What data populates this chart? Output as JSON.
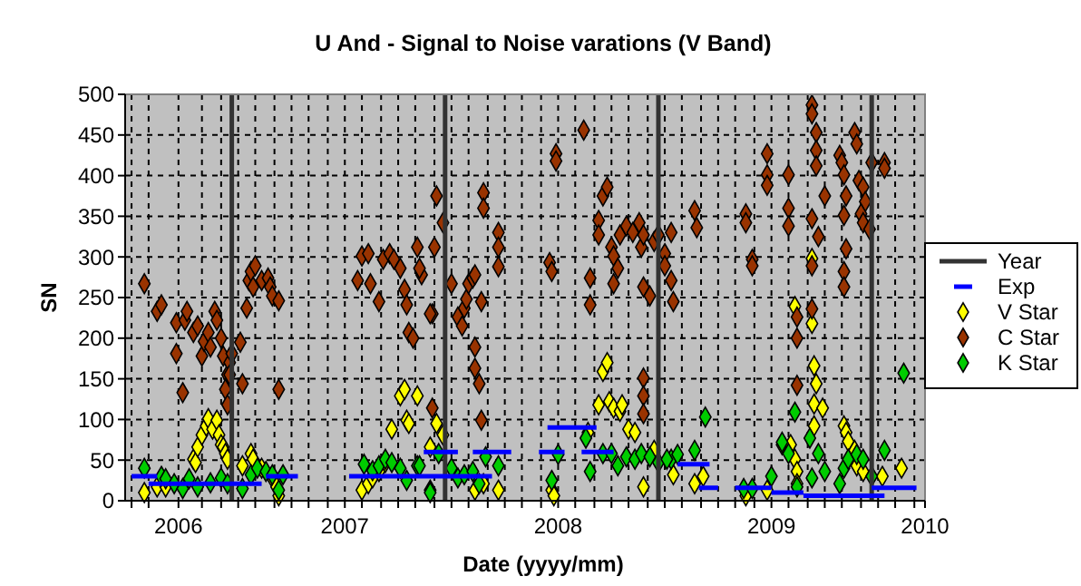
{
  "chart_data": {
    "type": "scatter",
    "title": "U And - Signal to Noise varations (V Band)",
    "xlabel": "Date (yyyy/mm)",
    "ylabel": "SN",
    "xlim": [
      2005.97,
      2009.72
    ],
    "ylim": [
      0,
      500
    ],
    "xticks": [
      {
        "value": 2006.0,
        "label": null
      },
      {
        "value": 2006.08,
        "label": null
      },
      {
        "value": 2006.22,
        "label": "2006"
      },
      {
        "value": 2006.33,
        "label": null
      },
      {
        "value": 2006.42,
        "label": null
      },
      {
        "value": 2006.5,
        "label": null
      },
      {
        "value": 2006.58,
        "label": null
      },
      {
        "value": 2006.67,
        "label": null
      },
      {
        "value": 2006.75,
        "label": null
      },
      {
        "value": 2006.83,
        "label": null
      },
      {
        "value": 2006.92,
        "label": null
      },
      {
        "value": 2007.0,
        "label": "2007"
      },
      {
        "value": 2007.08,
        "label": null
      },
      {
        "value": 2007.17,
        "label": null
      },
      {
        "value": 2007.25,
        "label": null
      },
      {
        "value": 2007.33,
        "label": null
      },
      {
        "value": 2007.42,
        "label": null
      },
      {
        "value": 2007.5,
        "label": null
      },
      {
        "value": 2007.58,
        "label": null
      },
      {
        "value": 2007.67,
        "label": null
      },
      {
        "value": 2007.75,
        "label": null
      },
      {
        "value": 2007.83,
        "label": null
      },
      {
        "value": 2007.92,
        "label": null
      },
      {
        "value": 2008.0,
        "label": "2008"
      },
      {
        "value": 2008.08,
        "label": null
      },
      {
        "value": 2008.17,
        "label": null
      },
      {
        "value": 2008.25,
        "label": null
      },
      {
        "value": 2008.33,
        "label": null
      },
      {
        "value": 2008.42,
        "label": null
      },
      {
        "value": 2008.5,
        "label": null
      },
      {
        "value": 2008.58,
        "label": null
      },
      {
        "value": 2008.67,
        "label": null
      },
      {
        "value": 2008.75,
        "label": null
      },
      {
        "value": 2008.83,
        "label": null
      },
      {
        "value": 2008.92,
        "label": null
      },
      {
        "value": 2009.0,
        "label": "2009"
      },
      {
        "value": 2009.08,
        "label": null
      },
      {
        "value": 2009.17,
        "label": null
      },
      {
        "value": 2009.25,
        "label": null
      },
      {
        "value": 2009.33,
        "label": null
      },
      {
        "value": 2009.42,
        "label": null
      },
      {
        "value": 2009.5,
        "label": null
      },
      {
        "value": 2009.58,
        "label": null
      },
      {
        "value": 2009.67,
        "label": null
      },
      {
        "value": 2009.72,
        "label": "2010"
      }
    ],
    "yticks": [
      0,
      50,
      100,
      150,
      200,
      250,
      300,
      350,
      400,
      450,
      500
    ],
    "grid": true,
    "legend": "right",
    "series": [
      {
        "name": "Year",
        "type": "line",
        "marker": "none",
        "color": "#333333",
        "x": [
          2006.47,
          2006.47,
          null,
          2007.47,
          2007.47,
          null,
          2008.47,
          2008.47,
          null,
          2009.47,
          2009.47
        ],
        "values": [
          0,
          500,
          null,
          0,
          500,
          null,
          0,
          500,
          null,
          0,
          500
        ]
      },
      {
        "name": "Exp",
        "type": "line",
        "marker": "none",
        "color": "#0000ff",
        "x": [
          2006.0,
          2006.12,
          null,
          2006.08,
          2006.61,
          null,
          2006.63,
          2006.78,
          null,
          2007.02,
          2007.69,
          null,
          2007.37,
          2007.53,
          null,
          2007.6,
          2007.78,
          null,
          2007.95,
          2008.18,
          null,
          2007.91,
          2008.03,
          null,
          2008.11,
          2008.26,
          null,
          2008.56,
          2008.71,
          null,
          2008.66,
          2008.75,
          null,
          2008.83,
          2009.0,
          null,
          2009.0,
          2009.15,
          null,
          2009.15,
          2009.53,
          null,
          2009.47,
          2009.68
        ],
        "values": [
          30,
          30,
          null,
          21,
          21,
          null,
          30,
          30,
          null,
          30,
          30,
          null,
          60,
          60,
          null,
          60,
          60,
          null,
          90,
          90,
          null,
          60,
          60,
          null,
          60,
          60,
          null,
          45,
          45,
          null,
          16,
          16,
          null,
          16,
          16,
          null,
          10,
          10,
          null,
          6,
          6,
          null,
          16,
          16
        ]
      },
      {
        "name": "V Star",
        "marker": "diamond",
        "color": "#ffff00",
        "x": [
          2006.06,
          2006.12,
          2006.16,
          2006.29,
          2006.3,
          2006.31,
          2006.33,
          2006.35,
          2006.36,
          2006.38,
          2006.4,
          2006.41,
          2006.42,
          2006.43,
          2006.44,
          2006.45,
          2006.52,
          2006.56,
          2006.57,
          2006.61,
          2006.66,
          2006.68,
          2006.69,
          2007.08,
          2007.11,
          2007.13,
          2007.16,
          2007.19,
          2007.22,
          2007.26,
          2007.28,
          2007.29,
          2007.3,
          2007.34,
          2007.4,
          2007.43,
          2007.46,
          2007.61,
          2007.65,
          2007.72,
          2007.97,
          2007.98,
          2008.14,
          2008.19,
          2008.21,
          2008.23,
          2008.24,
          2008.26,
          2008.29,
          2008.3,
          2008.33,
          2008.36,
          2008.4,
          2008.45,
          2008.54,
          2008.64,
          2008.68,
          2008.88,
          2008.98,
          2009.05,
          2009.09,
          2009.11,
          2009.12,
          2009.12,
          2009.11,
          2009.19,
          2009.19,
          2009.2,
          2009.21,
          2009.2,
          2009.24,
          2009.2,
          2009.34,
          2009.35,
          2009.36,
          2009.39,
          2009.4,
          2009.43,
          2009.52,
          2009.61
        ],
        "values": [
          10,
          17,
          17,
          51,
          47,
          66,
          81,
          92,
          101,
          88,
          99,
          81,
          69,
          66,
          58,
          51,
          43,
          58,
          51,
          40,
          28,
          17,
          6,
          13,
          21,
          28,
          36,
          47,
          88,
          129,
          137,
          99,
          95,
          129,
          66,
          95,
          81,
          13,
          21,
          13,
          13,
          6,
          84,
          118,
          159,
          170,
          122,
          114,
          110,
          118,
          88,
          84,
          17,
          62,
          32,
          21,
          30,
          6,
          13,
          69,
          69,
          51,
          36,
          21,
          239,
          298,
          218,
          166,
          144,
          119,
          114,
          92,
          92,
          84,
          73,
          62,
          43,
          36,
          30,
          40
        ]
      },
      {
        "name": "C Star",
        "marker": "diamond",
        "color": "#993300",
        "x": [
          2006.06,
          2006.12,
          2006.14,
          2006.21,
          2006.24,
          2006.21,
          2006.25,
          2006.26,
          2006.29,
          2006.31,
          2006.33,
          2006.34,
          2006.36,
          2006.37,
          2006.39,
          2006.4,
          2006.42,
          2006.43,
          2006.45,
          2006.46,
          2006.47,
          2006.44,
          2006.45,
          2006.46,
          2006.51,
          2006.52,
          2006.54,
          2006.55,
          2006.56,
          2006.57,
          2006.58,
          2006.61,
          2006.64,
          2006.65,
          2006.66,
          2006.69,
          2006.69,
          2007.06,
          2007.08,
          2007.11,
          2007.12,
          2007.16,
          2007.18,
          2007.21,
          2007.23,
          2007.26,
          2007.28,
          2007.29,
          2007.3,
          2007.32,
          2007.34,
          2007.36,
          2007.41,
          2007.35,
          2007.43,
          2007.46,
          2007.42,
          2007.4,
          2007.41,
          2007.5,
          2007.53,
          2007.56,
          2007.57,
          2007.58,
          2007.6,
          2007.61,
          2007.55,
          2007.61,
          2007.61,
          2007.63,
          2007.64,
          2007.64,
          2007.65,
          2007.65,
          2007.72,
          2007.72,
          2007.72,
          2007.96,
          2007.97,
          2007.99,
          2007.99,
          2008.12,
          2008.15,
          2008.15,
          2008.19,
          2008.19,
          2008.21,
          2008.23,
          2008.25,
          2008.26,
          2008.28,
          2008.26,
          2008.29,
          2008.32,
          2008.35,
          2008.38,
          2008.39,
          2008.4,
          2008.4,
          2008.4,
          2008.4,
          2008.4,
          2008.43,
          2008.45,
          2008.47,
          2008.5,
          2008.5,
          2008.53,
          2008.53,
          2008.54,
          2008.64,
          2008.65,
          2008.88,
          2008.88,
          2008.91,
          2008.91,
          2008.98,
          2008.98,
          2008.98,
          2009.08,
          2009.08,
          2009.08,
          2009.12,
          2009.12,
          2009.12,
          2009.19,
          2009.19,
          2009.21,
          2009.21,
          2009.21,
          2009.19,
          2009.22,
          2009.19,
          2009.19,
          2009.25,
          2009.32,
          2009.33,
          2009.34,
          2009.35,
          2009.34,
          2009.35,
          2009.34,
          2009.34,
          2009.39,
          2009.4,
          2009.41,
          2009.43,
          2009.44,
          2009.42,
          2009.43,
          2009.46,
          2009.47,
          2009.53,
          2009.53
        ],
        "values": [
          267,
          233,
          241,
          181,
          133,
          219,
          222,
          233,
          207,
          215,
          178,
          196,
          207,
          189,
          233,
          222,
          200,
          178,
          155,
          170,
          181,
          137,
          118,
          155,
          195,
          144,
          237,
          271,
          282,
          263,
          289,
          271,
          274,
          263,
          252,
          246,
          137,
          271,
          301,
          304,
          267,
          245,
          297,
          304,
          297,
          286,
          260,
          241,
          207,
          200,
          312,
          278,
          230,
          286,
          375,
          342,
          312,
          230,
          114,
          267,
          226,
          237,
          248,
          267,
          274,
          278,
          215,
          189,
          163,
          144,
          245,
          99,
          379,
          360,
          330,
          312,
          288,
          293,
          282,
          427,
          418,
          456,
          274,
          241,
          345,
          327,
          375,
          386,
          312,
          301,
          286,
          267,
          327,
          338,
          330,
          342,
          312,
          327,
          263,
          151,
          129,
          107,
          252,
          319,
          327,
          304,
          289,
          330,
          271,
          245,
          357,
          336,
          353,
          342,
          297,
          289,
          427,
          401,
          388,
          401,
          360,
          338,
          226,
          200,
          142,
          487,
          476,
          453,
          431,
          412,
          347,
          325,
          289,
          236,
          375,
          425,
          416,
          401,
          375,
          351,
          310,
          282,
          263,
          453,
          439,
          394,
          386,
          368,
          353,
          342,
          334,
          416,
          416,
          409
        ]
      },
      {
        "name": "K Star",
        "marker": "diamond",
        "color": "#00cc00",
        "x": [
          2006.06,
          2006.14,
          2006.16,
          2006.2,
          2006.24,
          2006.27,
          2006.31,
          2006.37,
          2006.42,
          2006.45,
          2006.52,
          2006.56,
          2006.59,
          2006.63,
          2006.66,
          2006.69,
          2006.71,
          2007.09,
          2007.13,
          2007.16,
          2007.19,
          2007.22,
          2007.26,
          2007.29,
          2007.34,
          2007.4,
          2007.35,
          2007.4,
          2007.44,
          2007.5,
          2007.53,
          2007.56,
          2007.6,
          2007.63,
          2007.66,
          2007.72,
          2007.97,
          2008.0,
          2008.13,
          2008.15,
          2008.21,
          2008.25,
          2008.28,
          2008.32,
          2008.36,
          2008.39,
          2008.43,
          2008.47,
          2008.53,
          2008.51,
          2008.56,
          2008.64,
          2008.69,
          2008.87,
          2008.91,
          2009.0,
          2009.05,
          2009.08,
          2009.12,
          2009.11,
          2009.18,
          2009.19,
          2009.22,
          2009.25,
          2009.32,
          2009.34,
          2009.36,
          2009.4,
          2009.43,
          2009.47,
          2009.53,
          2009.62
        ],
        "values": [
          40,
          30,
          27,
          21,
          15,
          27,
          17,
          22,
          28,
          21,
          15,
          32,
          40,
          36,
          32,
          13,
          32,
          45,
          37,
          43,
          51,
          47,
          40,
          25,
          43,
          13,
          43,
          10,
          58,
          40,
          28,
          32,
          36,
          21,
          54,
          43,
          25,
          57,
          77,
          36,
          58,
          58,
          43,
          54,
          51,
          58,
          54,
          47,
          51,
          51,
          57,
          62,
          103,
          15,
          15,
          30,
          72,
          58,
          17,
          109,
          77,
          28,
          58,
          36,
          21,
          40,
          51,
          57,
          51,
          30,
          62,
          157
        ]
      }
    ]
  }
}
